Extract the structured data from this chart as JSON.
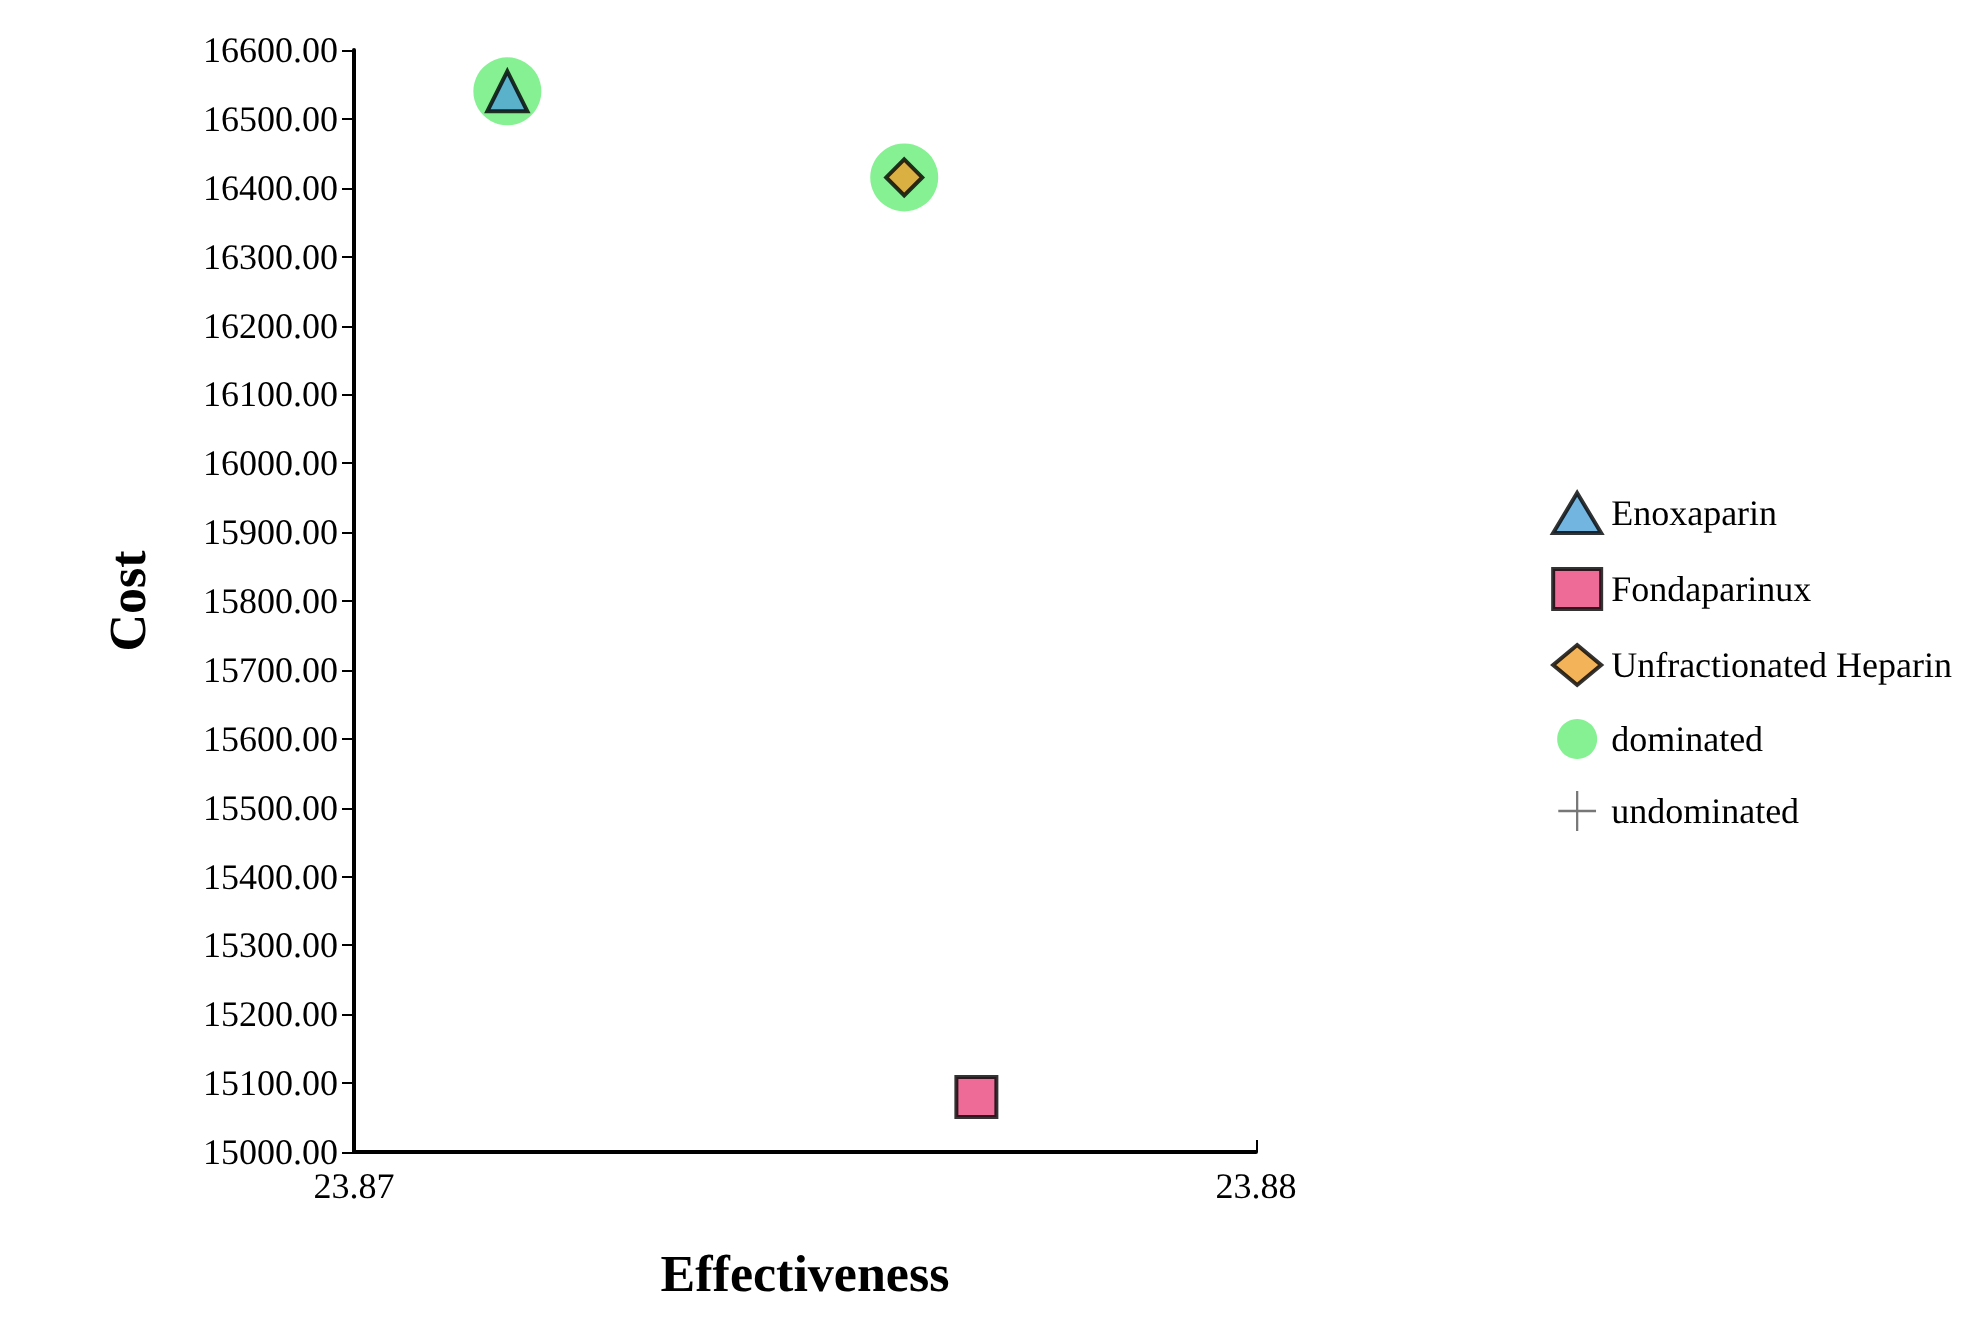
{
  "chart_data": {
    "type": "scatter",
    "xlabel": "Effectiveness",
    "ylabel": "Cost",
    "xlim": [
      23.87,
      23.88
    ],
    "xticks": [
      23.87,
      23.88
    ],
    "ylim": [
      15000,
      16600
    ],
    "yticks": [
      {
        "value": 15000,
        "label": "15000.00"
      },
      {
        "value": 15100,
        "label": "15100.00"
      },
      {
        "value": 15200,
        "label": "15200.00"
      },
      {
        "value": 15300,
        "label": "15300.00"
      },
      {
        "value": 15400,
        "label": "15400.00"
      },
      {
        "value": 15500,
        "label": "15500.00"
      },
      {
        "value": 15600,
        "label": "15600.00"
      },
      {
        "value": 15700,
        "label": "15700.00"
      },
      {
        "value": 15800,
        "label": "15800.00"
      },
      {
        "value": 15900,
        "label": "15900.00"
      },
      {
        "value": 16000,
        "label": "16000.00"
      },
      {
        "value": 16100,
        "label": "16100.00"
      },
      {
        "value": 16200,
        "label": "16200.00"
      },
      {
        "value": 16300,
        "label": "16300.00"
      },
      {
        "value": 16400,
        "label": "16400.00"
      },
      {
        "value": 16500,
        "label": "16500.00"
      },
      {
        "value": 16600,
        "label": "16600.00"
      }
    ],
    "grid": false,
    "legend": "right",
    "series": [
      {
        "name": "Enoxaparin",
        "color": "#4fa3d8",
        "marker": "triangle",
        "x": [
          23.8717
        ],
        "values": [
          16540
        ]
      },
      {
        "name": "Fondaparinux",
        "color": "#e8467c",
        "marker": "square",
        "x": [
          23.8769
        ],
        "values": [
          15080
        ]
      },
      {
        "name": "Unfractionated Heparin",
        "color": "#f0a030",
        "marker": "diamond",
        "x": [
          23.8761
        ],
        "values": [
          16415
        ]
      },
      {
        "name": "dominated",
        "color": "#66ee77",
        "marker": "circle",
        "x": [
          23.8717,
          23.8761
        ],
        "values": [
          16540,
          16415
        ]
      },
      {
        "name": "undominated",
        "color": "#555555",
        "marker": "cross"
      }
    ]
  }
}
